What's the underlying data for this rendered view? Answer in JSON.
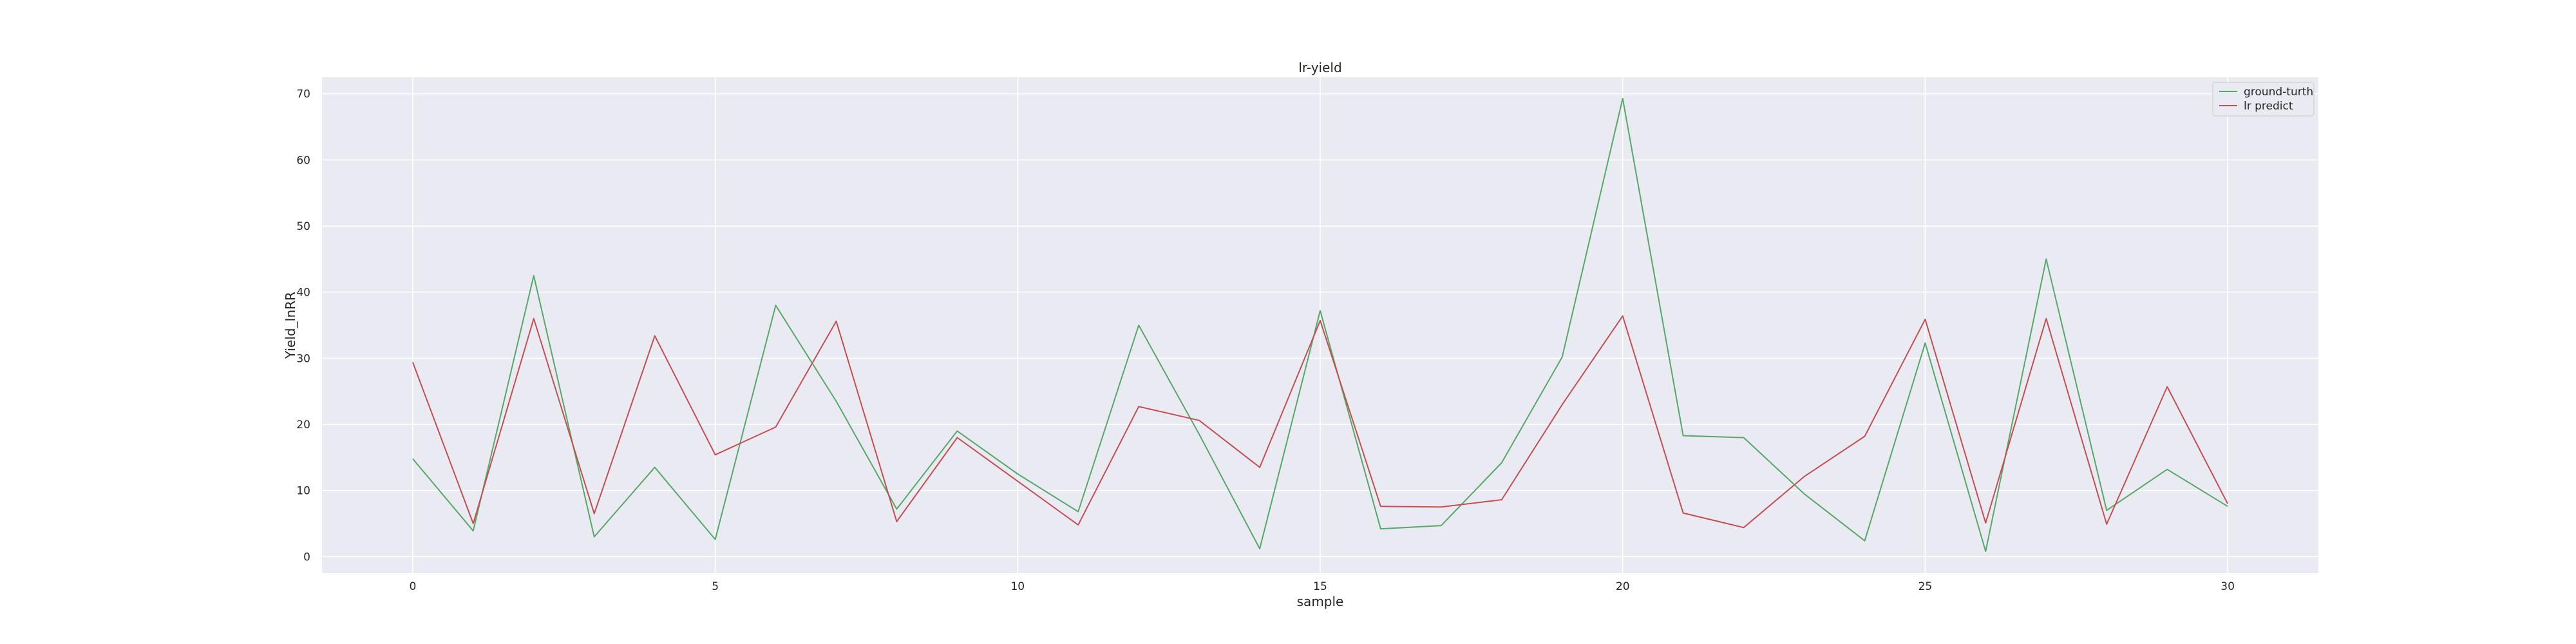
{
  "chart_data": {
    "type": "line",
    "title": "lr-yield",
    "xlabel": "sample",
    "ylabel": "Yield_InRR",
    "xlim": [
      -1.5,
      31.5
    ],
    "ylim": [
      -2.5,
      72.5
    ],
    "xticks": [
      0,
      5,
      10,
      15,
      20,
      25,
      30
    ],
    "yticks": [
      0,
      10,
      20,
      30,
      40,
      50,
      60,
      70
    ],
    "grid": true,
    "legend_position": "top-right",
    "x": [
      0,
      1,
      2,
      3,
      4,
      5,
      6,
      7,
      8,
      9,
      10,
      11,
      12,
      13,
      14,
      15,
      16,
      17,
      18,
      19,
      20,
      21,
      22,
      23,
      24,
      25,
      26,
      27,
      28,
      29,
      30
    ],
    "series": [
      {
        "name": "ground-turth",
        "color": "#55a868",
        "values": [
          14.8,
          3.9,
          42.5,
          3.0,
          13.5,
          2.6,
          38.0,
          23.5,
          7.2,
          19.0,
          12.5,
          6.8,
          35.0,
          18.5,
          1.2,
          37.2,
          4.2,
          4.7,
          14.2,
          30.2,
          69.3,
          18.3,
          18.0,
          9.5,
          2.4,
          32.3,
          0.8,
          45.0,
          7.0,
          13.2,
          7.6
        ]
      },
      {
        "name": "lr predict",
        "color": "#c44e52",
        "values": [
          29.4,
          5.0,
          36.0,
          6.5,
          33.4,
          15.4,
          19.6,
          35.6,
          5.3,
          18.0,
          11.4,
          4.8,
          22.7,
          20.6,
          13.5,
          35.7,
          7.6,
          7.5,
          8.6,
          23.0,
          36.4,
          6.6,
          4.4,
          12.1,
          18.2,
          35.9,
          5.1,
          36.0,
          4.9,
          25.7,
          8.0
        ]
      }
    ]
  }
}
